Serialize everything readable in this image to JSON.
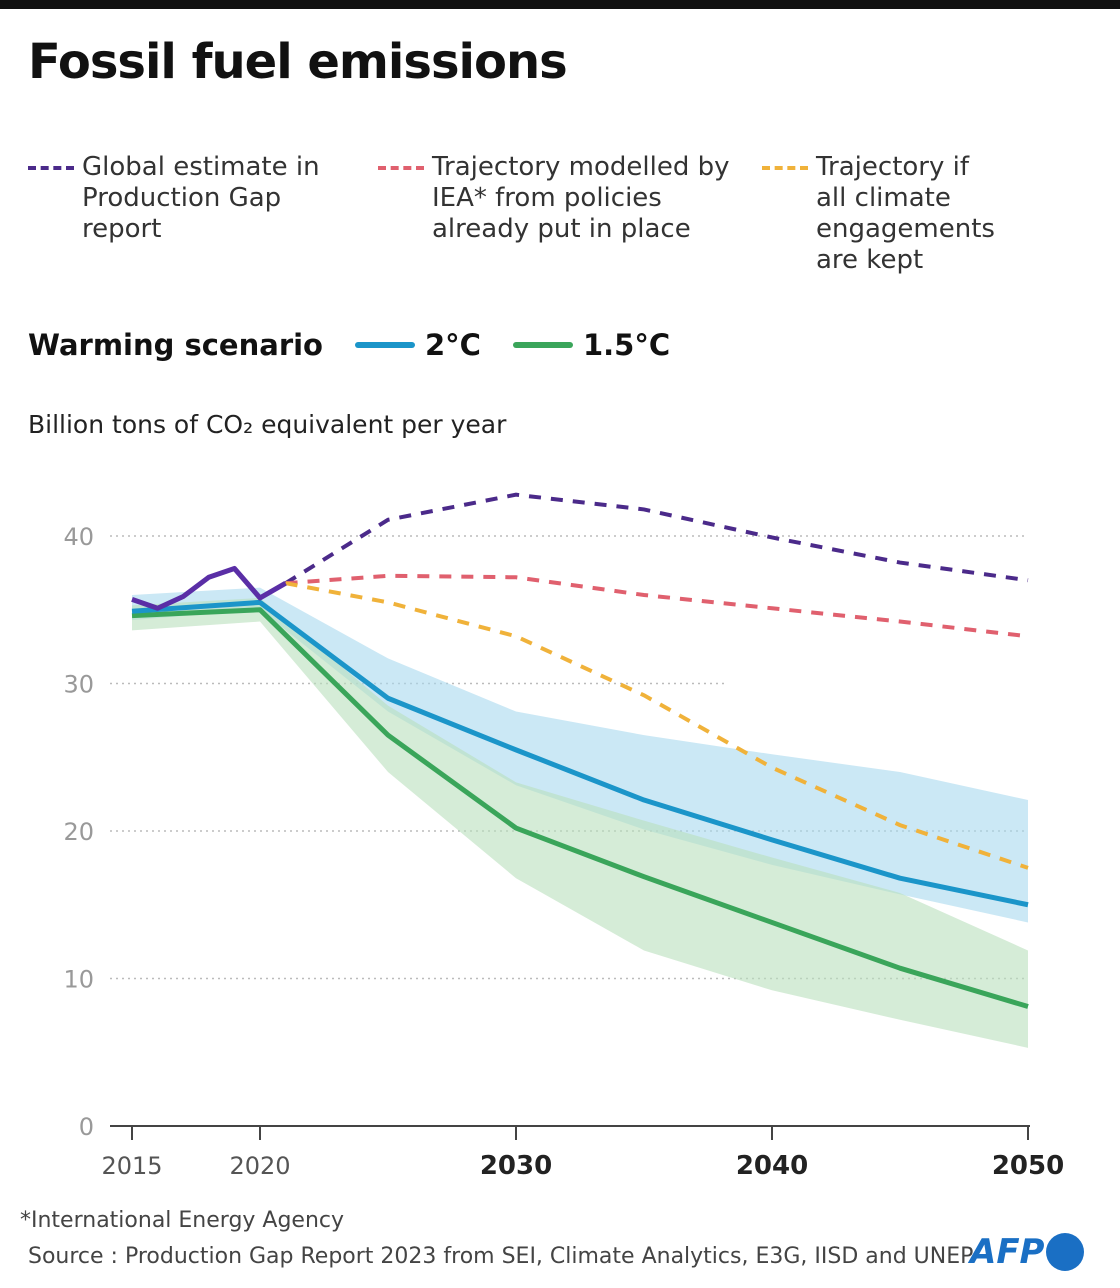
{
  "title": "Fossil fuel emissions",
  "legend": [
    {
      "label": "Global estimate in\nProduction Gap\nreport",
      "color": "#4b2a8a"
    },
    {
      "label": "Trajectory modelled by\nIEA* from policies\nalready put in place",
      "color": "#e0606e"
    },
    {
      "label": "Trajectory if\nall climate\nengagements\nare kept",
      "color": "#f0b23a"
    }
  ],
  "warming": {
    "label": "Warming scenario",
    "items": [
      {
        "label": "2°C",
        "color": "#1b95c9"
      },
      {
        "label": "1.5°C",
        "color": "#3aa55a"
      }
    ]
  },
  "footnote": "*International Energy Agency",
  "source": "Source : Production Gap Report 2023 from SEI, Climate Analytics, E3G, IISD and UNEP",
  "logo": "AFP",
  "chart_data": {
    "type": "line",
    "title": "Fossil fuel emissions",
    "ylabel": "Billion tons of CO₂ equivalent per year",
    "xlim": [
      2015,
      2050
    ],
    "ylim": [
      0,
      43
    ],
    "xticks": [
      "2015",
      "2020",
      "2030",
      "2040",
      "2050"
    ],
    "yticks": [
      "0",
      "10",
      "20",
      "30",
      "40"
    ],
    "grid": true,
    "historical": {
      "color": "#5a2ea6",
      "x": [
        2015,
        2016,
        2017,
        2018,
        2019,
        2020,
        2021
      ],
      "y": [
        35.7,
        35.1,
        35.9,
        37.2,
        37.8,
        35.8,
        36.8
      ]
    },
    "series": [
      {
        "name": "Global estimate in Production Gap report",
        "style": "dashed",
        "color": "#4b2a8a",
        "x": [
          2021,
          2025,
          2030,
          2035,
          2040,
          2045,
          2050
        ],
        "y": [
          36.8,
          41.1,
          42.8,
          41.8,
          39.9,
          38.2,
          37.0
        ]
      },
      {
        "name": "Trajectory modelled by IEA* from policies already put in place",
        "style": "dashed",
        "color": "#e0606e",
        "x": [
          2021,
          2025,
          2030,
          2035,
          2040,
          2045,
          2050
        ],
        "y": [
          36.8,
          37.3,
          37.2,
          36.0,
          35.1,
          34.2,
          33.2
        ]
      },
      {
        "name": "Trajectory if all climate engagements are kept",
        "style": "dashed",
        "color": "#f0b23a",
        "x": [
          2021,
          2025,
          2030,
          2035,
          2040,
          2045,
          2050
        ],
        "y": [
          36.8,
          35.5,
          33.2,
          29.2,
          24.3,
          20.4,
          17.5
        ]
      },
      {
        "name": "2°C",
        "style": "solid",
        "color": "#1b95c9",
        "band_color": "#a9d8ef",
        "x": [
          2015,
          2020,
          2025,
          2030,
          2035,
          2040,
          2045,
          2050
        ],
        "y": [
          34.9,
          35.5,
          29.0,
          25.5,
          22.1,
          19.4,
          16.8,
          15.0
        ],
        "upper": [
          36.0,
          36.5,
          31.7,
          28.1,
          26.5,
          25.2,
          24.0,
          22.1
        ],
        "lower": [
          34.3,
          35.0,
          28.1,
          23.1,
          20.1,
          17.7,
          15.7,
          13.8
        ]
      },
      {
        "name": "1.5°C",
        "style": "solid",
        "color": "#3aa55a",
        "band_color": "#b9e0bd",
        "x": [
          2015,
          2020,
          2025,
          2030,
          2035,
          2040,
          2045,
          2050
        ],
        "y": [
          34.6,
          35.0,
          26.5,
          20.2,
          16.9,
          13.8,
          10.7,
          8.1
        ],
        "upper": [
          35.3,
          35.8,
          28.5,
          23.3,
          20.7,
          18.2,
          15.8,
          11.9
        ],
        "lower": [
          33.6,
          34.2,
          24.0,
          16.8,
          11.9,
          9.2,
          7.2,
          5.3
        ]
      }
    ]
  }
}
